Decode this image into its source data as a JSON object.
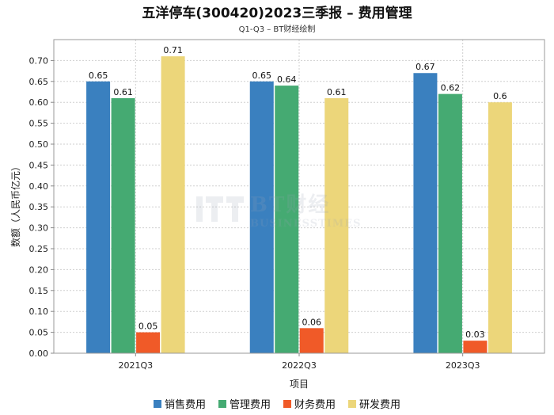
{
  "chart_data": {
    "type": "bar",
    "title": "五洋停车(300420)2023三季报 – 费用管理",
    "subtitle": "Q1-Q3 – BT财经绘制",
    "xlabel": "项目",
    "ylabel": "数额（人民币亿元）",
    "ylim": [
      0,
      0.75
    ],
    "yticks": [
      "0.00",
      "0.05",
      "0.10",
      "0.15",
      "0.20",
      "0.25",
      "0.30",
      "0.35",
      "0.40",
      "0.45",
      "0.50",
      "0.55",
      "0.60",
      "0.65",
      "0.70"
    ],
    "categories": [
      "2021Q3",
      "2022Q3",
      "2023Q3"
    ],
    "series": [
      {
        "name": "销售费用",
        "color": "#3a80bf",
        "values": [
          0.65,
          0.65,
          0.67
        ],
        "labels": [
          "0.65",
          "0.65",
          "0.67"
        ]
      },
      {
        "name": "管理费用",
        "color": "#45aa72",
        "values": [
          0.61,
          0.64,
          0.62
        ],
        "labels": [
          "0.61",
          "0.64",
          "0.62"
        ]
      },
      {
        "name": "财务费用",
        "color": "#f05a28",
        "values": [
          0.05,
          0.06,
          0.03
        ],
        "labels": [
          "0.05",
          "0.06",
          "0.03"
        ]
      },
      {
        "name": "研发费用",
        "color": "#ecd67a",
        "values": [
          0.71,
          0.61,
          0.6
        ],
        "labels": [
          "0.71",
          "0.61",
          "0.6"
        ]
      }
    ],
    "grid": true,
    "legend": "bottom"
  },
  "watermark": {
    "cn": "BT财经",
    "en": "BUSINESSTIMES"
  }
}
